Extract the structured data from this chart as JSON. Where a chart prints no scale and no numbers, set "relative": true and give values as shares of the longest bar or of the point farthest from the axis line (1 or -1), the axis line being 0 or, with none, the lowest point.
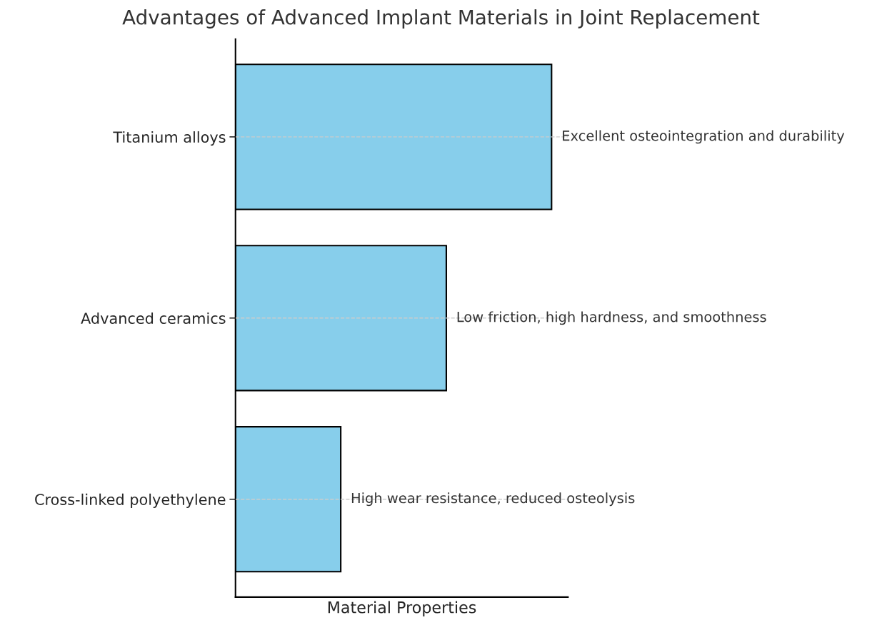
{
  "chart_data": {
    "type": "bar",
    "orientation": "horizontal",
    "relative": true,
    "title": "Advantages of Advanced Implant Materials in Joint Replacement",
    "xlabel": "Material Properties",
    "categories": [
      "Titanium alloys",
      "Advanced ceramics",
      "Cross-linked polyethylene"
    ],
    "values": [
      1,
      0.667,
      0.333
    ],
    "color": "#87ceeb",
    "grid": "y",
    "annotations": [
      {
        "text": "Excellent osteointegration and durability",
        "x": 1,
        "y": "Titanium alloys"
      },
      {
        "text": "Low friction, high hardness, and smoothness",
        "x": 0.667,
        "y": "Advanced ceramics"
      },
      {
        "text": "High wear resistance, reduced osteolysis",
        "x": 0.333,
        "y": "Cross-linked polyethylene"
      }
    ]
  }
}
